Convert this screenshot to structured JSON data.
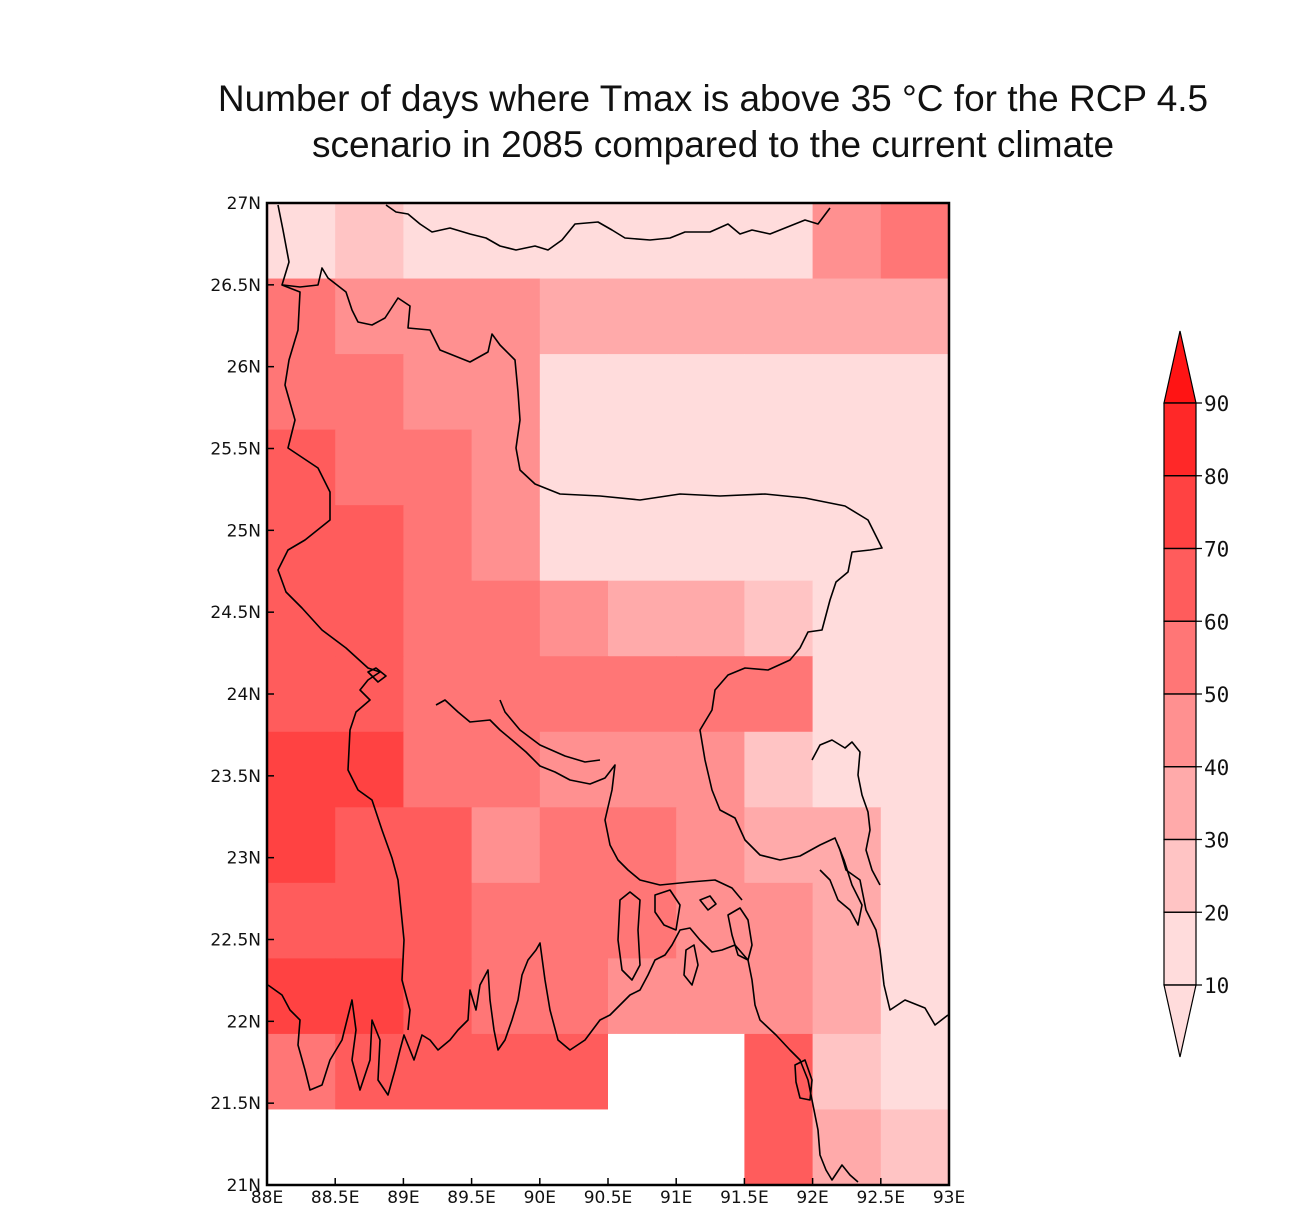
{
  "title_line1": "Number of days where Tmax is above 35 °C for the RCP 4.5",
  "title_line2": "scenario in 2085 compared to the current climate",
  "map": {
    "lon_range": [
      88,
      93
    ],
    "lat_range": [
      21,
      27
    ],
    "x_tick_labels": [
      "88E",
      "88.5E",
      "89E",
      "89.5E",
      "90E",
      "90.5E",
      "91E",
      "91.5E",
      "92E",
      "92.5E",
      "93E"
    ],
    "y_tick_labels": [
      "21N",
      "21.5N",
      "22N",
      "22.5N",
      "23N",
      "23.5N",
      "24N",
      "24.5N",
      "25N",
      "25.5N",
      "26N",
      "26.5N",
      "27N"
    ],
    "grid_resolution_deg": 0.5,
    "grid_note_rows_top_to_bottom": "values in days, null = no data (white)",
    "grid": [
      [
        10,
        25,
        15,
        15,
        15,
        15,
        15,
        15,
        45,
        55
      ],
      [
        55,
        45,
        45,
        45,
        30,
        30,
        35,
        35,
        35,
        35
      ],
      [
        55,
        55,
        45,
        45,
        15,
        10,
        10,
        10,
        10,
        10
      ],
      [
        65,
        55,
        50,
        45,
        15,
        15,
        10,
        10,
        10,
        10
      ],
      [
        60,
        60,
        50,
        45,
        10,
        10,
        10,
        10,
        10,
        10
      ],
      [
        65,
        65,
        55,
        50,
        45,
        35,
        35,
        25,
        15,
        15
      ],
      [
        65,
        65,
        55,
        50,
        50,
        50,
        50,
        50,
        15,
        10
      ],
      [
        75,
        75,
        55,
        50,
        45,
        45,
        45,
        25,
        10,
        10
      ],
      [
        75,
        65,
        60,
        45,
        50,
        50,
        45,
        35,
        35,
        10
      ],
      [
        65,
        65,
        60,
        55,
        50,
        50,
        45,
        45,
        35,
        10
      ],
      [
        75,
        75,
        65,
        55,
        50,
        45,
        45,
        40,
        35,
        10
      ],
      [
        55,
        60,
        60,
        60,
        60,
        null,
        null,
        60,
        25,
        10
      ],
      [
        null,
        null,
        null,
        null,
        null,
        null,
        null,
        65,
        30,
        25
      ]
    ],
    "colorbar": {
      "labels": [
        "10",
        "20",
        "30",
        "40",
        "50",
        "60",
        "70",
        "80",
        "90"
      ],
      "colors": [
        "#ffffff",
        "#ffdcdc",
        "#ffc4c4",
        "#ffaaaa",
        "#ff9090",
        "#ff7676",
        "#ff5c5c",
        "#ff4242",
        "#ff2828",
        "#ff1414"
      ],
      "extend": "both"
    }
  }
}
